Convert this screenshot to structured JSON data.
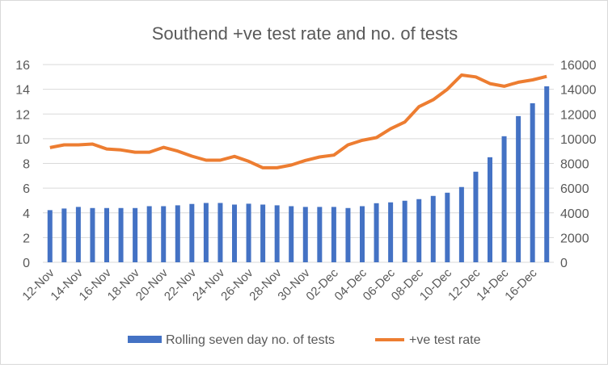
{
  "chart_data": {
    "type": "bar+line",
    "title": "Southend +ve test rate and no. of tests",
    "categories": [
      "12-Nov",
      "13-Nov",
      "14-Nov",
      "15-Nov",
      "16-Nov",
      "17-Nov",
      "18-Nov",
      "19-Nov",
      "20-Nov",
      "21-Nov",
      "22-Nov",
      "23-Nov",
      "24-Nov",
      "25-Nov",
      "26-Nov",
      "27-Nov",
      "28-Nov",
      "29-Nov",
      "30-Nov",
      "01-Dec",
      "02-Dec",
      "03-Dec",
      "04-Dec",
      "05-Dec",
      "06-Dec",
      "07-Dec",
      "08-Dec",
      "09-Dec",
      "10-Dec",
      "11-Dec",
      "12-Dec",
      "13-Dec",
      "14-Dec",
      "15-Dec",
      "16-Dec",
      "17-Dec"
    ],
    "x_tick_labels": [
      "12-Nov",
      "14-Nov",
      "16-Nov",
      "18-Nov",
      "20-Nov",
      "22-Nov",
      "24-Nov",
      "26-Nov",
      "28-Nov",
      "30-Nov",
      "02-Dec",
      "04-Dec",
      "06-Dec",
      "08-Dec",
      "10-Dec",
      "12-Dec",
      "14-Dec",
      "16-Dec"
    ],
    "series": [
      {
        "name": "Rolling seven day no. of tests",
        "type": "bar",
        "axis": "right",
        "color": "#4472c4",
        "values": [
          4220,
          4350,
          4480,
          4390,
          4390,
          4390,
          4390,
          4540,
          4540,
          4610,
          4720,
          4800,
          4800,
          4670,
          4740,
          4670,
          4610,
          4540,
          4480,
          4480,
          4480,
          4390,
          4540,
          4780,
          4850,
          4980,
          5110,
          5370,
          5630,
          6090,
          7330,
          8500,
          10200,
          11830,
          12870,
          14240
        ]
      },
      {
        "name": "+ve test rate",
        "type": "line",
        "axis": "left",
        "color": "#ed7d31",
        "values": [
          9.28,
          9.5,
          9.5,
          9.57,
          9.17,
          9.09,
          8.91,
          8.91,
          9.3,
          9.0,
          8.59,
          8.26,
          8.26,
          8.57,
          8.17,
          7.65,
          7.65,
          7.87,
          8.24,
          8.52,
          8.67,
          9.5,
          9.87,
          10.09,
          10.8,
          11.35,
          12.59,
          13.15,
          14.0,
          15.15,
          15.0,
          14.46,
          14.24,
          14.57,
          14.76,
          15.04
        ]
      }
    ],
    "y_left": {
      "min": 0,
      "max": 16,
      "ticks": [
        "0",
        "2",
        "4",
        "6",
        "8",
        "10",
        "12",
        "14",
        "16"
      ]
    },
    "y_right": {
      "min": 0,
      "max": 16000,
      "ticks": [
        "0",
        "2000",
        "4000",
        "6000",
        "8000",
        "10000",
        "12000",
        "14000",
        "16000"
      ]
    },
    "grid": true,
    "legend_position": "bottom"
  }
}
